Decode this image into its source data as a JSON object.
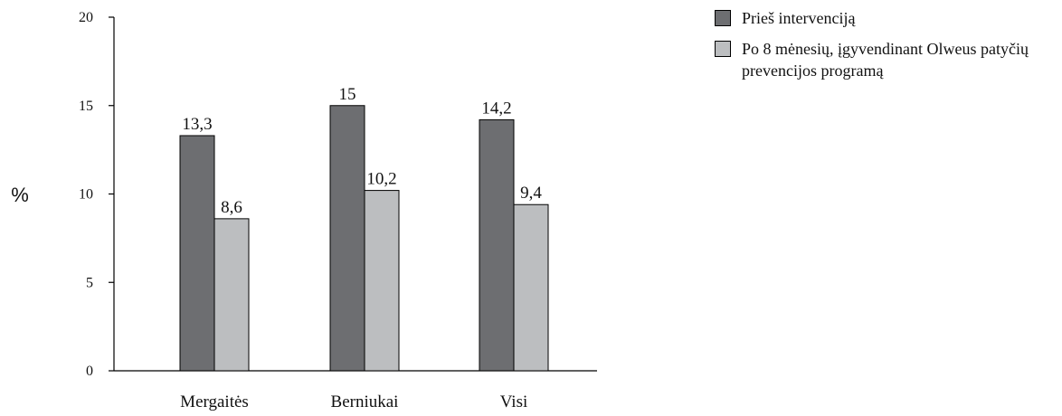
{
  "chart_data": {
    "type": "bar",
    "categories": [
      "Mergaitės",
      "Berniukai",
      "Visi"
    ],
    "series": [
      {
        "name": "Prieš intervenciją",
        "values": [
          13.3,
          15,
          14.2
        ],
        "labels": [
          "13,3",
          "15",
          "14,2"
        ],
        "color": "#6d6e71"
      },
      {
        "name": "Po 8 mėnesių, įgyvendinant Olweus patyčių prevencijos programą",
        "values": [
          8.6,
          10.2,
          9.4
        ],
        "labels": [
          "8,6",
          "10,2",
          "9,4"
        ],
        "color": "#bcbec0"
      }
    ],
    "ylabel": "%",
    "ylim": [
      0,
      20
    ],
    "yticks": [
      0,
      5,
      10,
      15,
      20
    ],
    "grid": false,
    "legend_position": "top-right"
  }
}
